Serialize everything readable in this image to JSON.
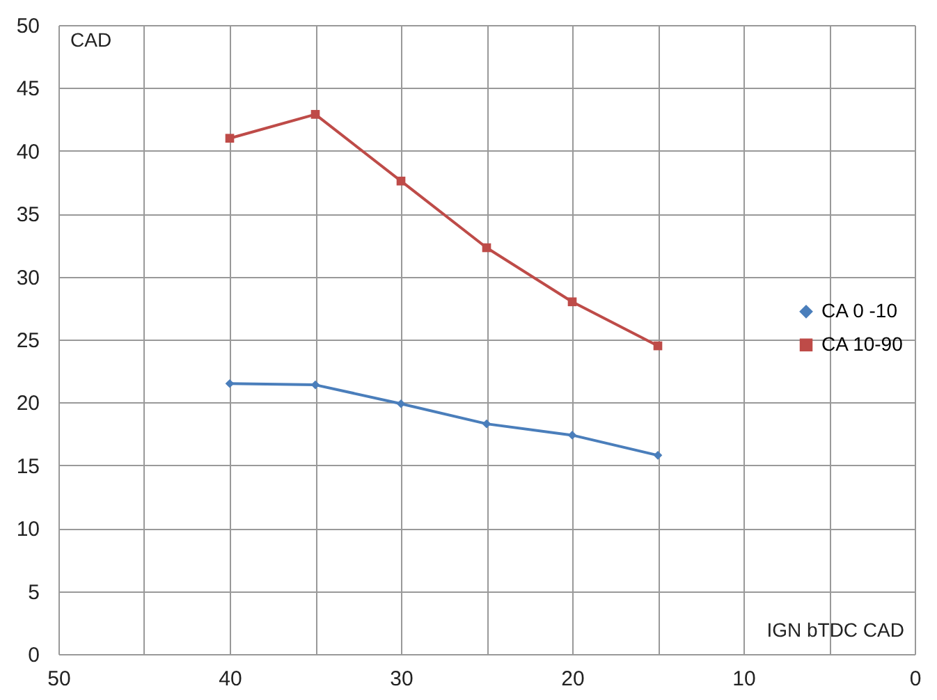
{
  "chart_data": {
    "type": "line",
    "xlabel": "IGN bTDC CAD",
    "ylabel": "CAD",
    "xlim": [
      50,
      0
    ],
    "xticks": [
      50,
      {
        "value": 45,
        "label": null
      },
      40,
      {
        "value": 35,
        "label": null
      },
      30,
      {
        "value": 25,
        "label": null
      },
      20,
      {
        "value": 15,
        "label": null
      },
      10,
      {
        "value": 5,
        "label": null
      },
      0
    ],
    "ylim": [
      0,
      50
    ],
    "yticks": [
      0,
      5,
      10,
      15,
      20,
      25,
      30,
      35,
      40,
      45,
      50
    ],
    "grid": true,
    "legend": "right",
    "x": [
      40,
      35,
      30,
      25,
      20,
      15
    ],
    "series": [
      {
        "name": "CA 0 -10",
        "color": "#4a7ebb",
        "marker": "diamond",
        "values": [
          21.5,
          21.4,
          19.9,
          18.3,
          17.4,
          15.8
        ]
      },
      {
        "name": "CA 10-90",
        "color": "#be4b48",
        "marker": "square",
        "values": [
          41.0,
          42.9,
          37.6,
          32.3,
          28.0,
          24.5
        ]
      }
    ]
  }
}
